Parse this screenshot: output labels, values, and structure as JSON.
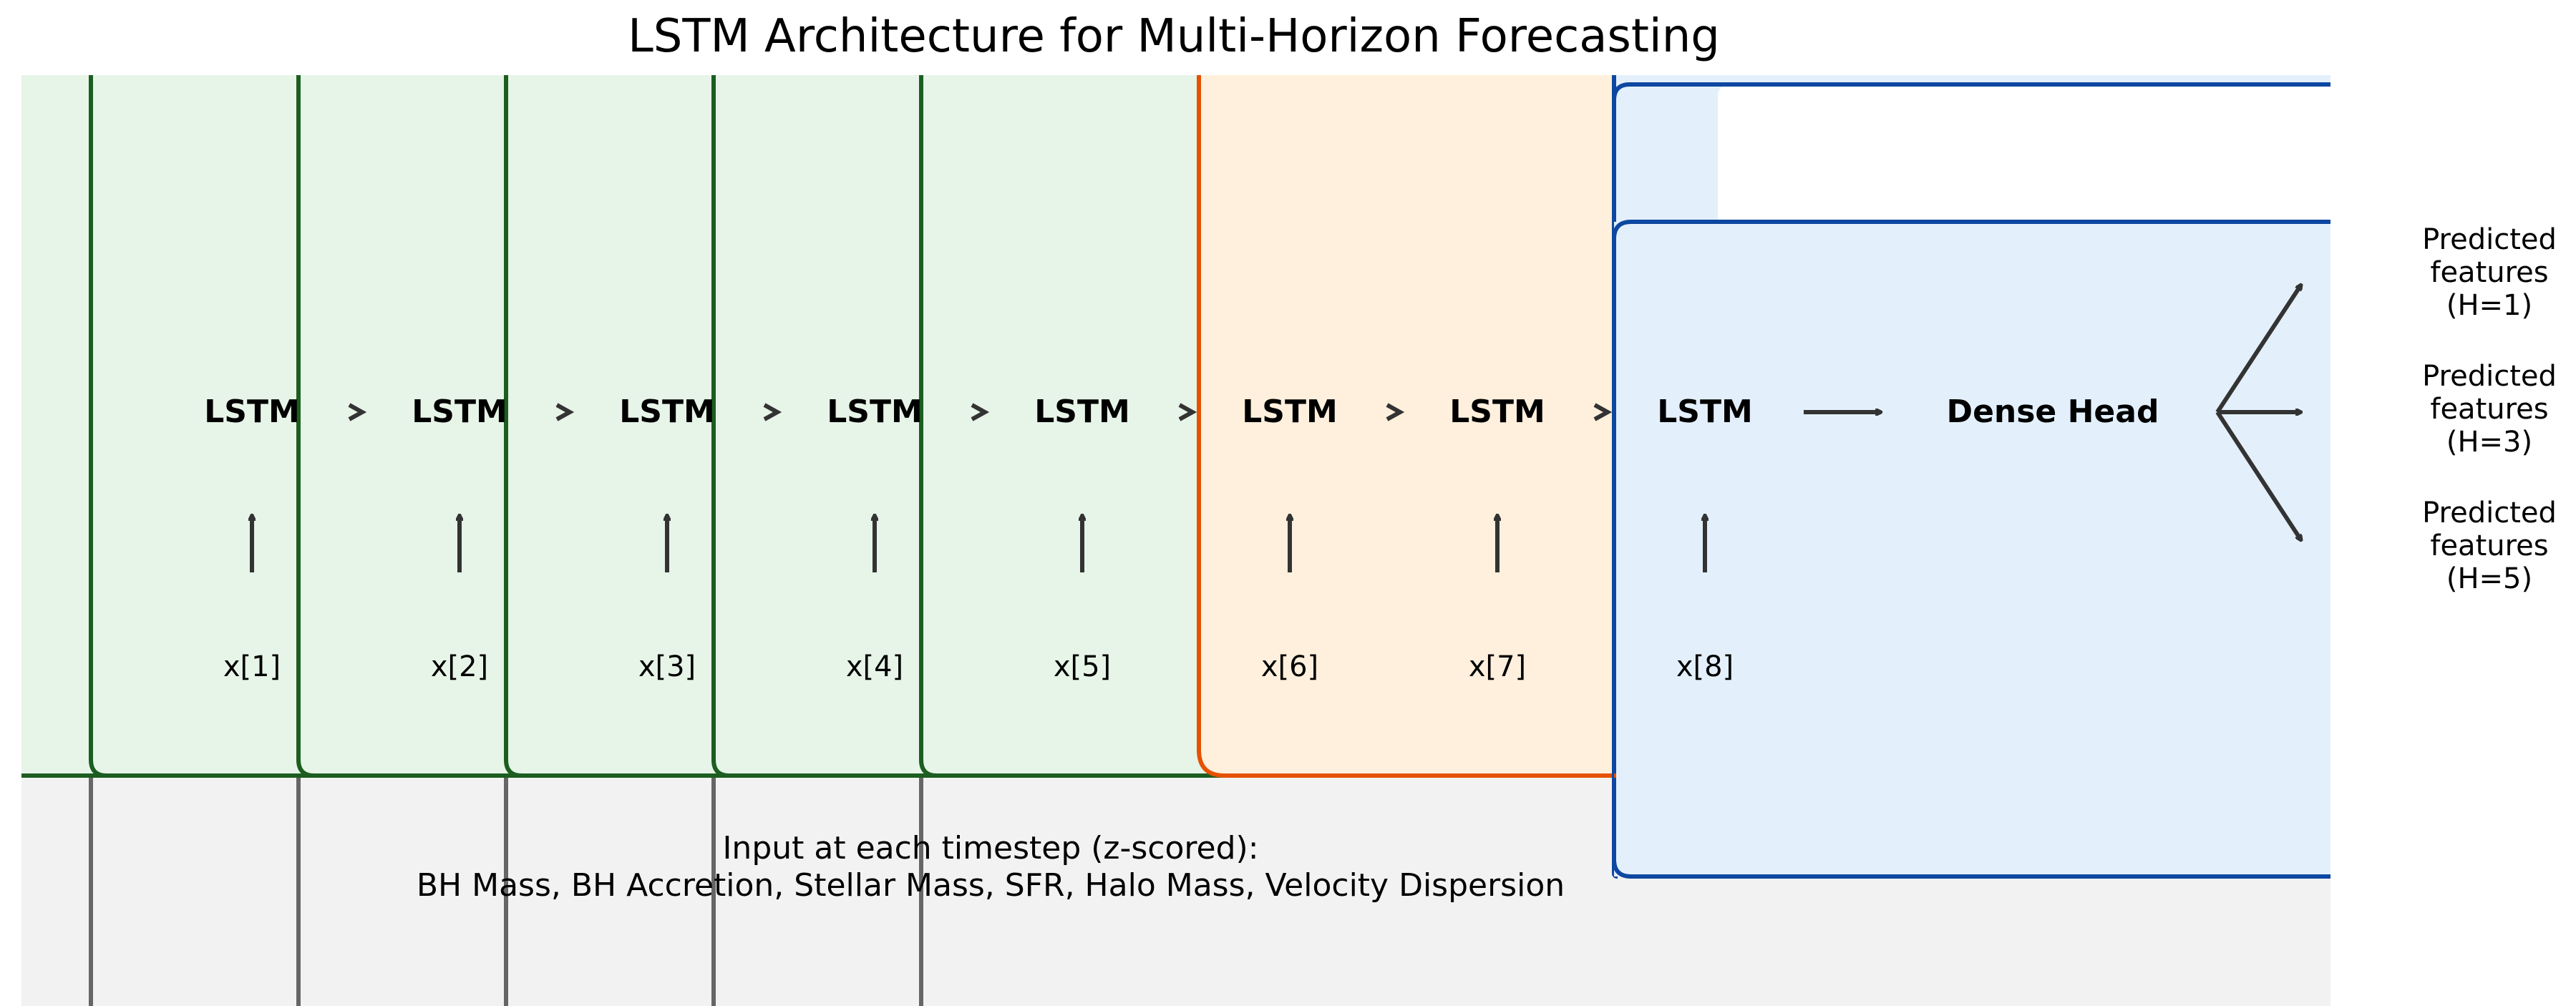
{
  "title": "LSTM Architecture for Multi-Horizon Forecasting",
  "colors": {
    "green_fill": "#e7f4e8",
    "green_edge": "#1b5e20",
    "orange_fill": "#fff0dd",
    "orange_edge": "#e65100",
    "blue_fill": "#e3f0fc",
    "blue_edge": "#0d47a1",
    "gray_fill": "#f2f2f2",
    "gray_edge": "#666666",
    "arrow": "#333333"
  },
  "cells": [
    {
      "label": "LSTM",
      "input": "x[1]"
    },
    {
      "label": "LSTM",
      "input": "x[2]"
    },
    {
      "label": "LSTM",
      "input": "x[3]"
    },
    {
      "label": "LSTM",
      "input": "x[4]"
    },
    {
      "label": "LSTM",
      "input": "x[5]"
    },
    {
      "label": "LSTM",
      "input": "x[6]"
    },
    {
      "label": "LSTM",
      "input": "x[7]"
    },
    {
      "label": "LSTM",
      "input": "x[8]"
    }
  ],
  "dense_head": "Dense Head",
  "outputs": [
    {
      "line1": "Predicted",
      "line2": "features",
      "line3": "(H=1)"
    },
    {
      "line1": "Predicted",
      "line2": "features",
      "line3": "(H=3)"
    },
    {
      "line1": "Predicted",
      "line2": "features",
      "line3": "(H=5)"
    }
  ],
  "input_note": {
    "line1": "Input at each timestep (z-scored):",
    "line2": "BH Mass, BH Accretion, Stellar Mass, SFR, Halo Mass, Velocity Dispersion"
  }
}
